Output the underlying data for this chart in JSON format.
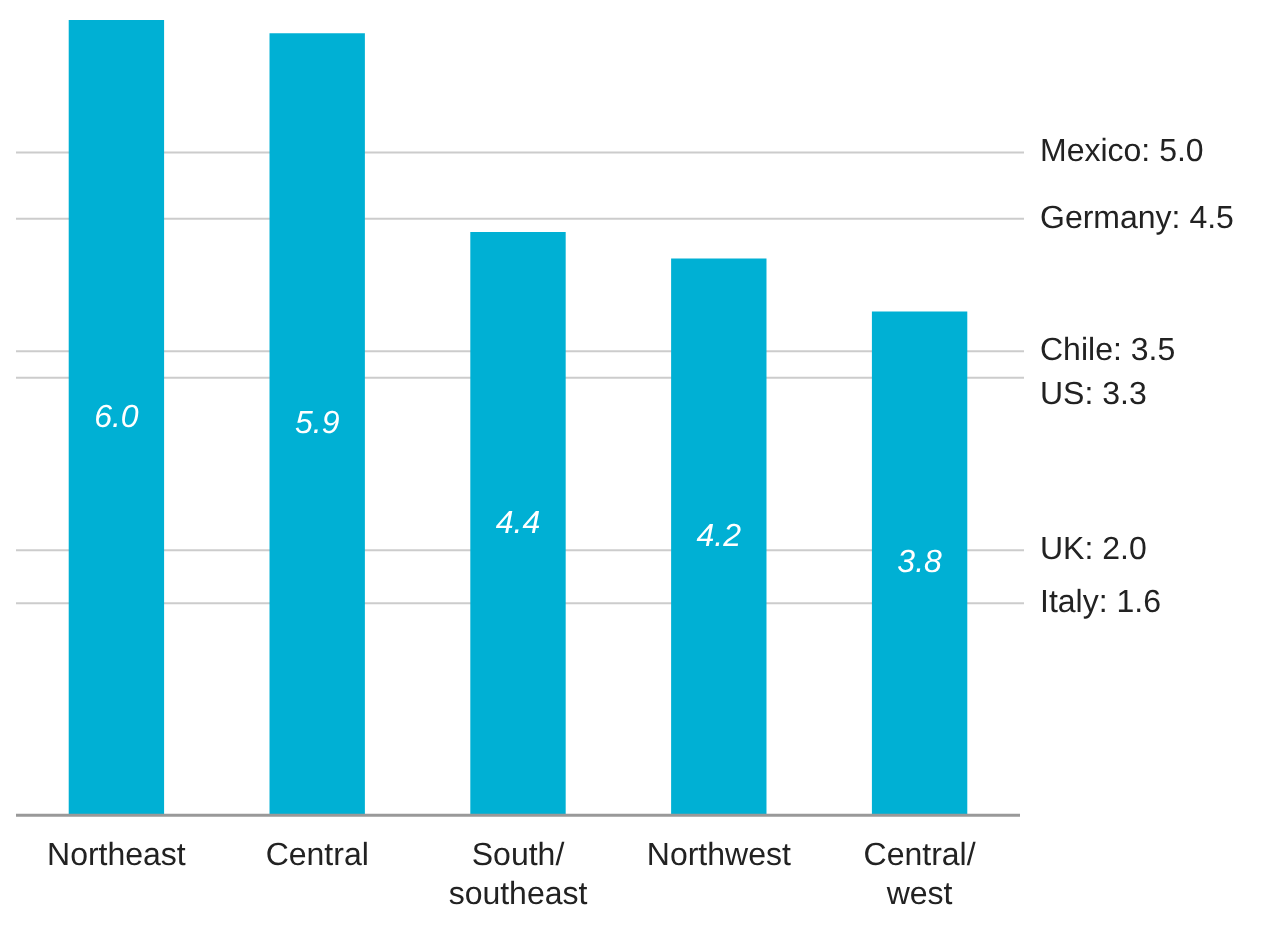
{
  "chart_data": {
    "type": "bar",
    "categories": [
      "Northeast",
      "Central",
      "South/\nsoutheast",
      "Northwest",
      "Central/\nwest"
    ],
    "values": [
      6.0,
      5.9,
      4.4,
      4.2,
      3.8
    ],
    "value_labels": [
      "6.0",
      "5.9",
      "4.4",
      "4.2",
      "3.8"
    ],
    "color": "#00b0d4",
    "ylim": [
      0,
      6
    ],
    "grid": false,
    "legend": false,
    "ref_lines": [
      {
        "axis": "y",
        "value": 5.0,
        "label": "Mexico: 5.0",
        "color": "#cccccc"
      },
      {
        "axis": "y",
        "value": 4.5,
        "label": "Germany: 4.5",
        "color": "#cccccc"
      },
      {
        "axis": "y",
        "value": 3.5,
        "label": "Chile: 3.5",
        "color": "#cccccc"
      },
      {
        "axis": "y",
        "value": 3.3,
        "label": "US: 3.3",
        "color": "#cccccc"
      },
      {
        "axis": "y",
        "value": 2.0,
        "label": "UK: 2.0",
        "color": "#cccccc"
      },
      {
        "axis": "y",
        "value": 1.6,
        "label": "Italy: 1.6",
        "color": "#cccccc"
      }
    ]
  }
}
